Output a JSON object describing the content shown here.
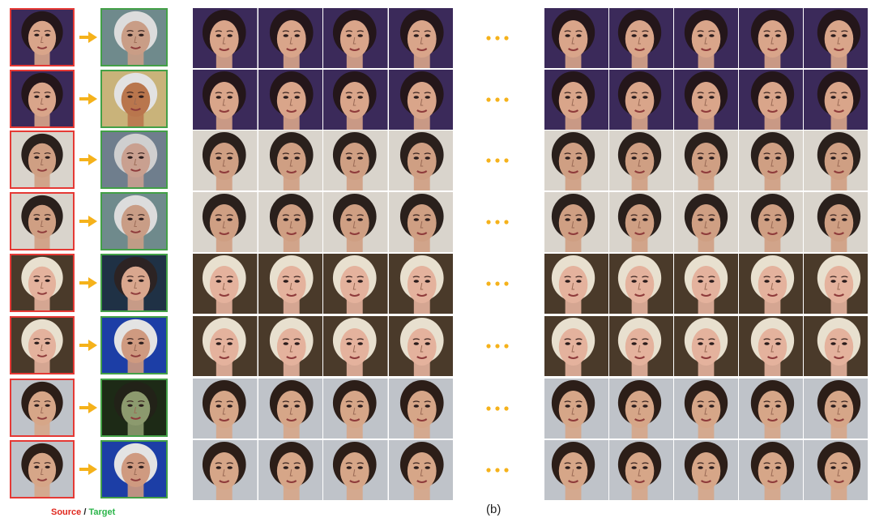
{
  "legend": {
    "source": "Source",
    "separator": " / ",
    "target": "Target"
  },
  "caption": "(b)",
  "colors": {
    "source_border": "#e53935",
    "target_border": "#43a047",
    "arrow": "#f5b21b",
    "dots": "#f5b21b"
  },
  "rows": [
    {
      "bg": "#3b2a5a",
      "skin": "#d9a58a",
      "hair": "#24161a",
      "target_bg": "#6f8a8c",
      "target_skin": "#c99d86",
      "target_hair": "#dcdcdc"
    },
    {
      "bg": "#3b2a5a",
      "skin": "#d9a58a",
      "hair": "#24161a",
      "target_bg": "#c9b37a",
      "target_skin": "#b9764d",
      "target_hair": "#e2e2e2"
    },
    {
      "bg": "#d9d4cc",
      "skin": "#cf9f83",
      "hair": "#2a201c",
      "target_bg": "#6f7e8d",
      "target_skin": "#c9a090",
      "target_hair": "#cfcfcf"
    },
    {
      "bg": "#d9d4cc",
      "skin": "#cf9f83",
      "hair": "#2a201c",
      "target_bg": "#6f8a8c",
      "target_skin": "#c99d86",
      "target_hair": "#dcdcdc"
    },
    {
      "bg": "#4a3a2a",
      "skin": "#e4b29d",
      "hair": "#e8e0cf",
      "target_bg": "#1f3145",
      "target_skin": "#d9a78e",
      "target_hair": "#2c2323"
    },
    {
      "bg": "#4a3a2a",
      "skin": "#e4b29d",
      "hair": "#e8e0cf",
      "target_bg": "#1c3ea6",
      "target_skin": "#cf9a80",
      "target_hair": "#e3e3e3"
    },
    {
      "bg": "#bfc3c9",
      "skin": "#d6a688",
      "hair": "#2c1e18",
      "target_bg": "#1d2a16",
      "target_skin": "#8c9a6e",
      "target_hair": "#222218"
    },
    {
      "bg": "#bfc3c9",
      "skin": "#d6a688",
      "hair": "#2c1e18",
      "target_bg": "#1c3ea6",
      "target_skin": "#cf9a80",
      "target_hair": "#e3e3e3"
    }
  ]
}
